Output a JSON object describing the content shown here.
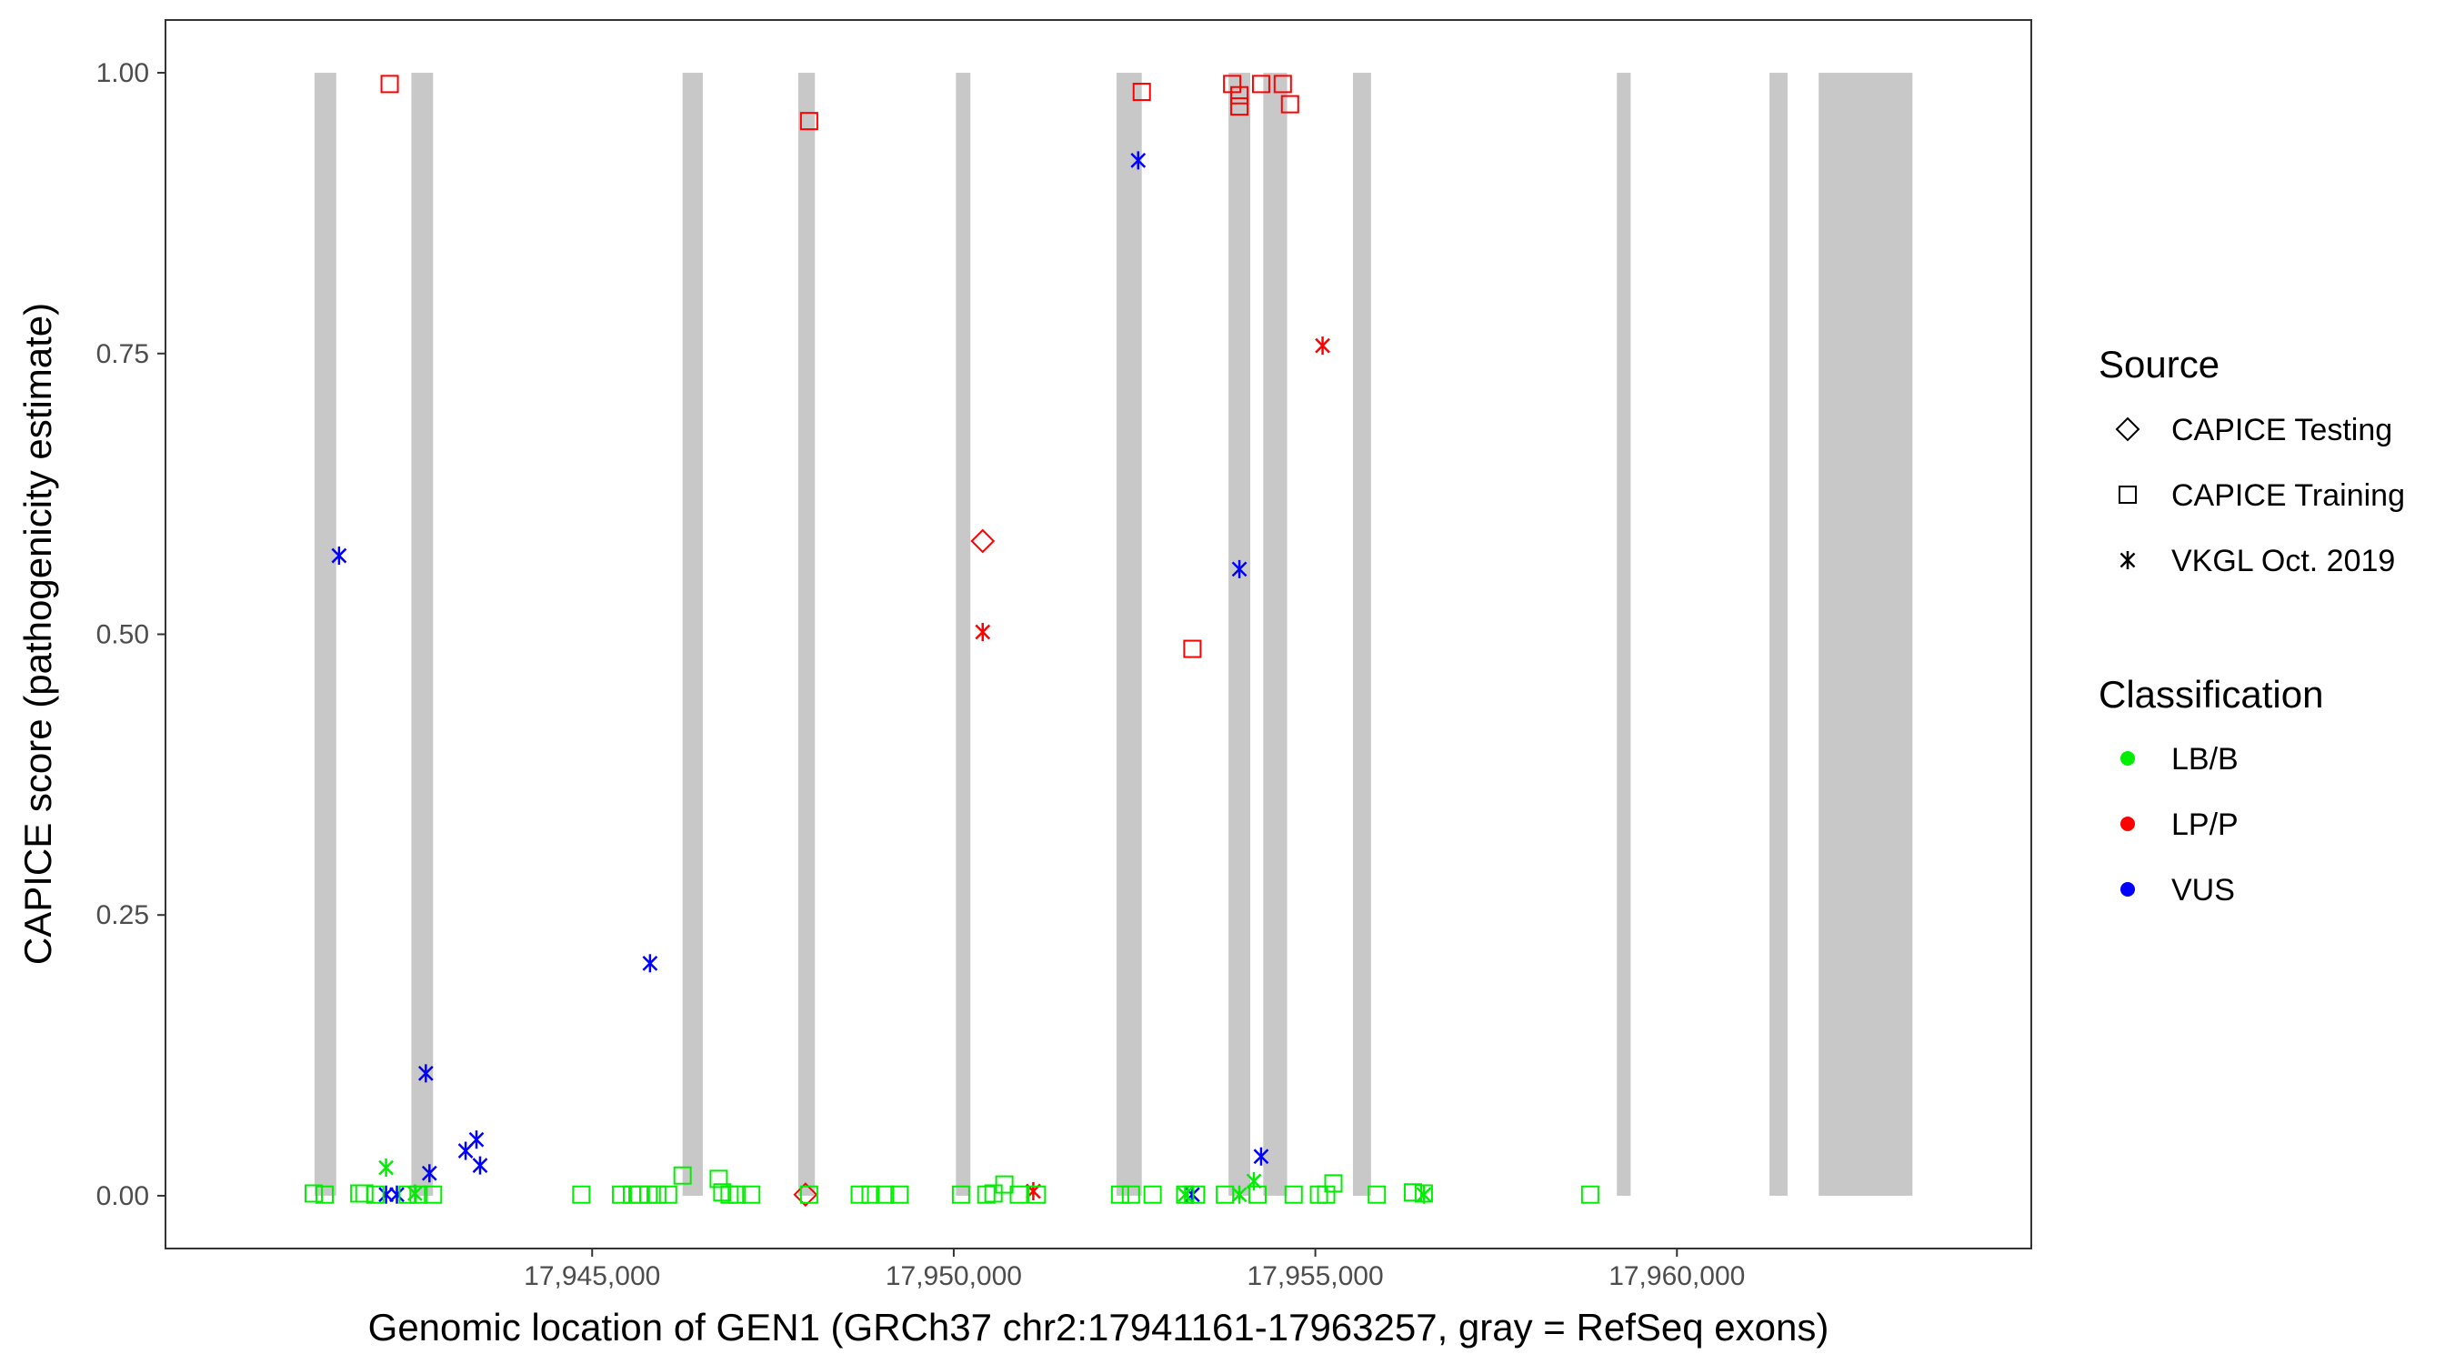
{
  "chart_data": {
    "type": "scatter",
    "title": "",
    "xlabel": "Genomic location of GEN1 (GRCh37 chr2:17941161-17963257, gray = RefSeq exons)",
    "ylabel": "CAPICE score (pathogenicity estimate)",
    "xlim": [
      17939100,
      17964900
    ],
    "ylim": [
      -0.047,
      1.047
    ],
    "x_ticks": [
      17945000,
      17950000,
      17955000,
      17960000
    ],
    "x_tick_labels": [
      "17,945,000",
      "17,950,000",
      "17,955,000",
      "17,960,000"
    ],
    "y_ticks": [
      0,
      0.25,
      0.5,
      0.75,
      1
    ],
    "y_tick_labels": [
      "0.00",
      "0.25",
      "0.50",
      "0.75",
      "1.00"
    ],
    "grid": false,
    "legend_position": "right",
    "exons": [
      [
        17941161,
        17941461
      ],
      [
        17942500,
        17942800
      ],
      [
        17946250,
        17946530
      ],
      [
        17947850,
        17948080
      ],
      [
        17950030,
        17950230
      ],
      [
        17952250,
        17952600
      ],
      [
        17953800,
        17954100
      ],
      [
        17954280,
        17954610
      ],
      [
        17955520,
        17955770
      ],
      [
        17959170,
        17959360
      ],
      [
        17961280,
        17961530
      ],
      [
        17961960,
        17963257
      ]
    ],
    "exon_color": "#c8c8c8",
    "legends": {
      "source": {
        "title": "Source",
        "items": [
          {
            "label": "CAPICE Testing",
            "shape": "diamond"
          },
          {
            "label": "CAPICE Training",
            "shape": "square"
          },
          {
            "label": "VKGL Oct. 2019",
            "shape": "asterisk"
          }
        ]
      },
      "classification": {
        "title": "Classification",
        "items": [
          {
            "label": "LB/B",
            "color": "#00ee00"
          },
          {
            "label": "LP/P",
            "color": "#ff0000"
          },
          {
            "label": "VUS",
            "color": "#0000ff"
          }
        ]
      }
    },
    "series": [
      {
        "source": "CAPICE Training",
        "classification": "LP/P",
        "points": [
          [
            17942200,
            0.99
          ],
          [
            17948000,
            0.957
          ],
          [
            17952600,
            0.983
          ],
          [
            17953300,
            0.487
          ],
          [
            17953850,
            0.99
          ],
          [
            17953950,
            0.98
          ],
          [
            17953950,
            0.97
          ],
          [
            17954250,
            0.99
          ],
          [
            17954550,
            0.99
          ],
          [
            17954650,
            0.972
          ]
        ]
      },
      {
        "source": "VKGL Oct. 2019",
        "classification": "VUS",
        "points": [
          [
            17941500,
            0.57
          ],
          [
            17942700,
            0.109
          ],
          [
            17942750,
            0.02
          ],
          [
            17942150,
            0.001
          ],
          [
            17942300,
            0.001
          ],
          [
            17943250,
            0.04
          ],
          [
            17943400,
            0.05
          ],
          [
            17943450,
            0.027
          ],
          [
            17945800,
            0.207
          ],
          [
            17952550,
            0.922
          ],
          [
            17953300,
            0.001
          ],
          [
            17953950,
            0.558
          ],
          [
            17954250,
            0.035
          ]
        ]
      },
      {
        "source": "VKGL Oct. 2019",
        "classification": "LP/P",
        "points": [
          [
            17950400,
            0.502
          ],
          [
            17951100,
            0.004
          ],
          [
            17955100,
            0.757
          ]
        ]
      },
      {
        "source": "CAPICE Testing",
        "classification": "LP/P",
        "points": [
          [
            17950400,
            0.583
          ],
          [
            17947950,
            0.001
          ]
        ]
      },
      {
        "source": "VKGL Oct. 2019",
        "classification": "LB/B",
        "points": [
          [
            17942150,
            0.025
          ],
          [
            17942550,
            0.002
          ],
          [
            17953200,
            0.001
          ],
          [
            17953950,
            0.001
          ],
          [
            17954150,
            0.013
          ],
          [
            17956500,
            0.001
          ]
        ]
      },
      {
        "source": "CAPICE Training",
        "classification": "LB/B",
        "points": [
          [
            17941150,
            0.002
          ],
          [
            17941300,
            0.001
          ],
          [
            17941780,
            0.002
          ],
          [
            17941850,
            0.002
          ],
          [
            17942000,
            0.001
          ],
          [
            17942450,
            0.001
          ],
          [
            17942600,
            0.001
          ],
          [
            17942800,
            0.001
          ],
          [
            17944850,
            0.001
          ],
          [
            17945400,
            0.001
          ],
          [
            17945550,
            0.001
          ],
          [
            17945650,
            0.001
          ],
          [
            17945780,
            0.001
          ],
          [
            17945900,
            0.001
          ],
          [
            17946050,
            0.001
          ],
          [
            17946250,
            0.018
          ],
          [
            17946750,
            0.015
          ],
          [
            17946800,
            0.003
          ],
          [
            17946900,
            0.001
          ],
          [
            17947000,
            0.001
          ],
          [
            17947200,
            0.001
          ],
          [
            17948000,
            0.001
          ],
          [
            17948700,
            0.001
          ],
          [
            17948850,
            0.001
          ],
          [
            17949050,
            0.001
          ],
          [
            17949250,
            0.001
          ],
          [
            17950100,
            0.001
          ],
          [
            17950450,
            0.001
          ],
          [
            17950550,
            0.002
          ],
          [
            17950700,
            0.01
          ],
          [
            17950900,
            0.001
          ],
          [
            17951150,
            0.001
          ],
          [
            17952300,
            0.001
          ],
          [
            17952450,
            0.001
          ],
          [
            17952750,
            0.001
          ],
          [
            17953200,
            0.001
          ],
          [
            17953350,
            0.001
          ],
          [
            17953750,
            0.001
          ],
          [
            17954200,
            0.001
          ],
          [
            17954700,
            0.001
          ],
          [
            17955050,
            0.001
          ],
          [
            17955150,
            0.001
          ],
          [
            17955250,
            0.011
          ],
          [
            17955850,
            0.001
          ],
          [
            17956350,
            0.003
          ],
          [
            17956500,
            0.002
          ],
          [
            17958800,
            0.001
          ]
        ]
      }
    ]
  }
}
